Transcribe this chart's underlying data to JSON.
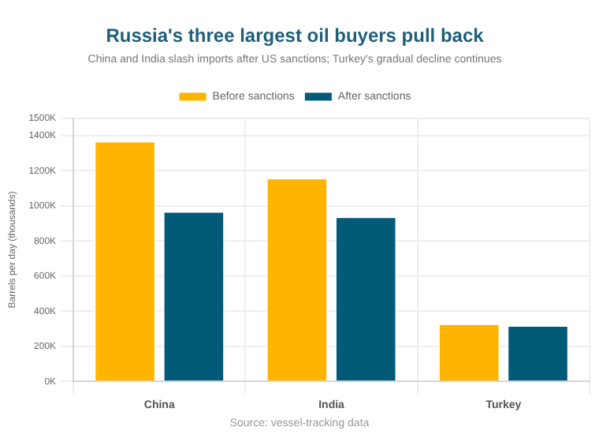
{
  "chart_data": {
    "type": "bar",
    "title": "Russia's three largest oil buyers pull back",
    "subtitle": "China and India slash imports after US sanctions; Turkey's gradual decline continues",
    "ylabel": "Barrels per day (thousands)",
    "categories": [
      "China",
      "India",
      "Turkey"
    ],
    "series": [
      {
        "name": "Before sanctions",
        "color": "#ffb400",
        "values": [
          1370,
          1160,
          330
        ]
      },
      {
        "name": "After sanctions",
        "color": "#005a78",
        "values": [
          970,
          940,
          320
        ]
      }
    ],
    "ylim": [
      0,
      1500
    ],
    "yticks": [
      {
        "value": 0,
        "label": "0K"
      },
      {
        "value": 200,
        "label": "200K"
      },
      {
        "value": 400,
        "label": "400K"
      },
      {
        "value": 600,
        "label": "600K"
      },
      {
        "value": 800,
        "label": "800K"
      },
      {
        "value": 1000,
        "label": "1000K"
      },
      {
        "value": 1200,
        "label": "1200K"
      },
      {
        "value": 1400,
        "label": "1400K"
      },
      {
        "value": 1500,
        "label": "1500K"
      }
    ],
    "grid": true,
    "legend": "top",
    "annotations": [
      "Source: vessel-tracking data"
    ]
  }
}
